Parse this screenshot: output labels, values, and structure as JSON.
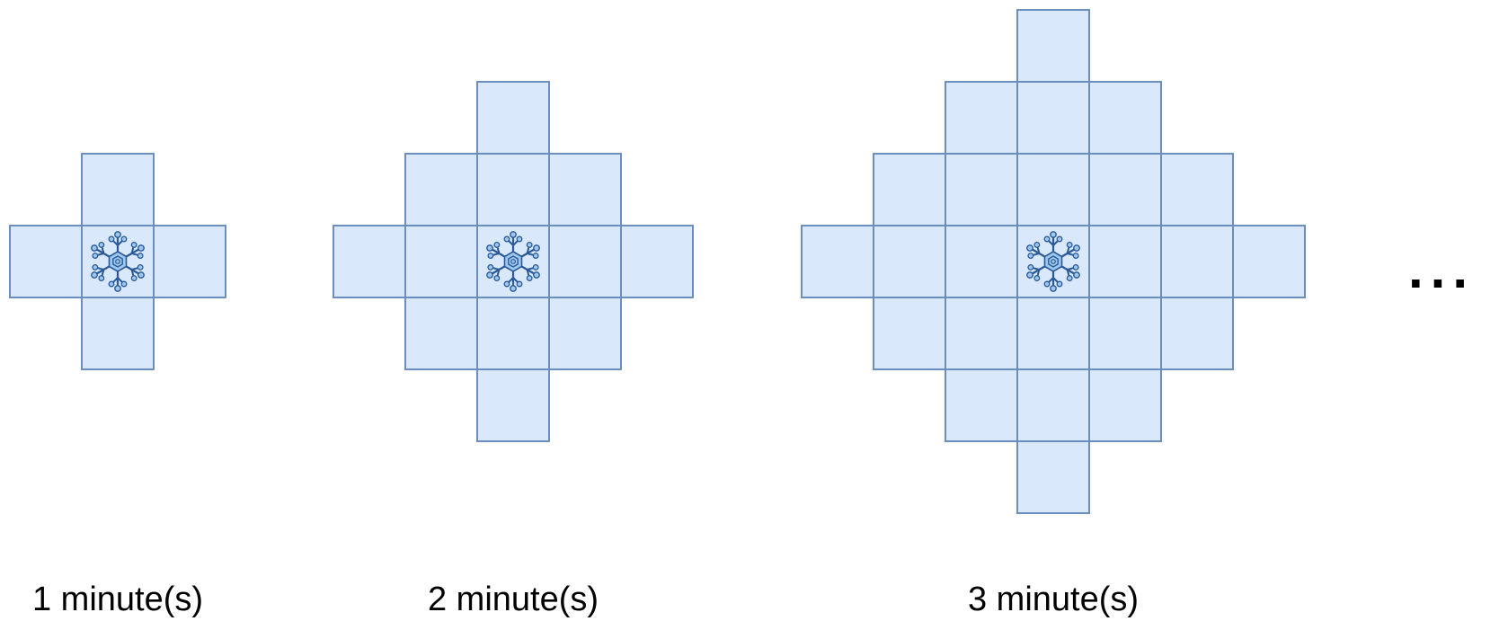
{
  "stages": [
    {
      "label": "1 minute(s)",
      "minutes": 1
    },
    {
      "label": "2 minute(s)",
      "minutes": 2
    },
    {
      "label": "3 minute(s)",
      "minutes": 3
    }
  ],
  "continuation": "...",
  "colors": {
    "cell_fill": "#dae8fc",
    "cell_stroke": "#6c8ebf",
    "snowflake_fill": "#9fc8ee",
    "snowflake_stroke": "#2a5a9a",
    "text": "#000000"
  },
  "icons": {
    "center": "snowflake-icon"
  }
}
